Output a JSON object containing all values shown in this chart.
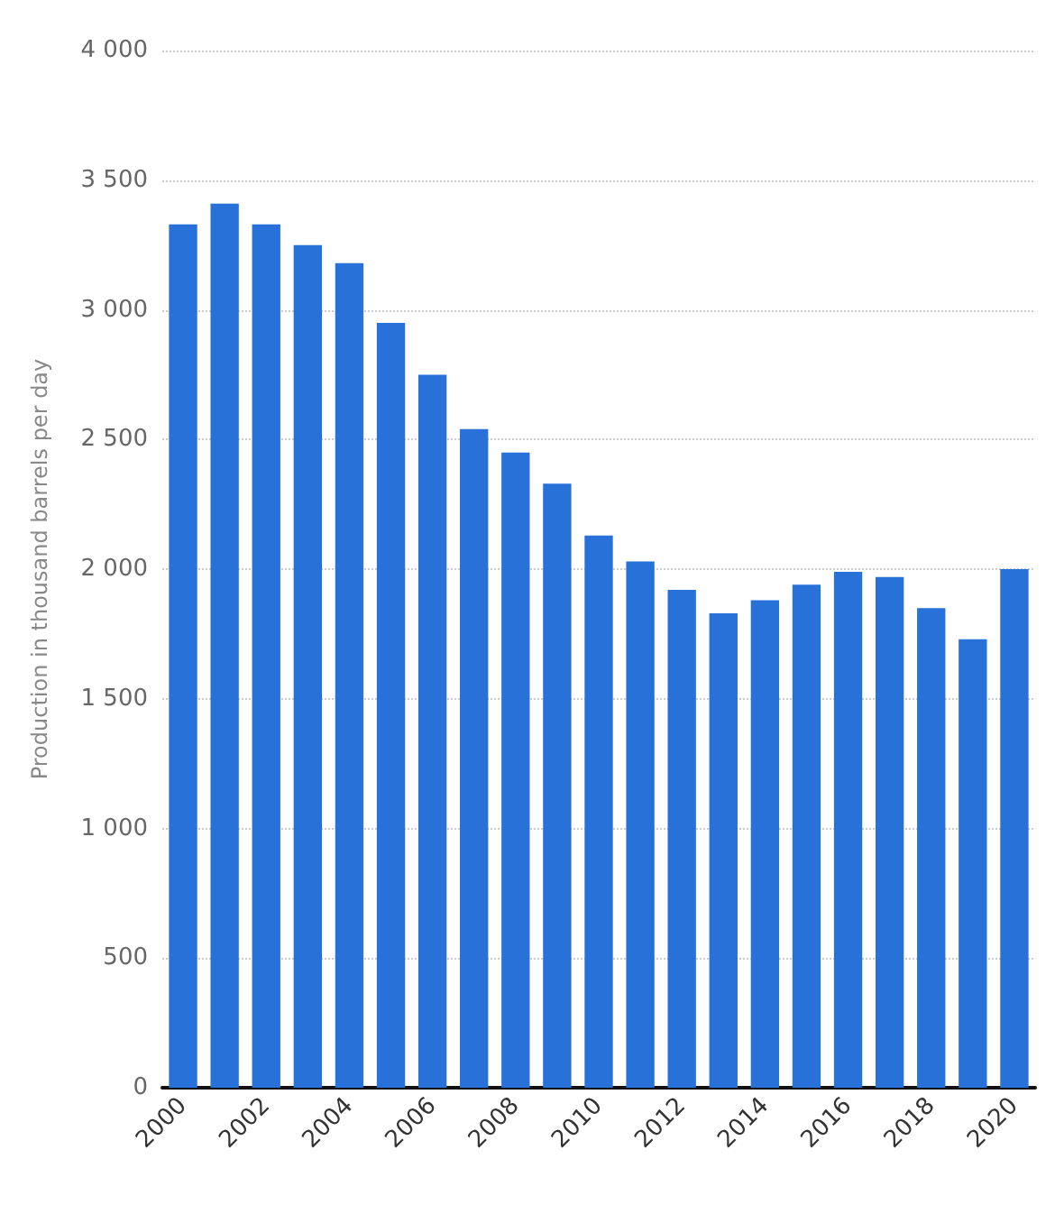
{
  "chart_data": {
    "type": "bar",
    "ylabel": "Production in thousand barrels per day",
    "categories": [
      "2000",
      null,
      "2002",
      null,
      "2004",
      null,
      "2006",
      null,
      "2008",
      null,
      "2010",
      null,
      "2012",
      null,
      "2014",
      null,
      "2016",
      null,
      "2018",
      null,
      "2020"
    ],
    "values": [
      3330,
      3410,
      3330,
      3250,
      3180,
      2950,
      2750,
      2540,
      2450,
      2330,
      2130,
      2030,
      1920,
      1830,
      1880,
      1940,
      1990,
      1970,
      1850,
      1730,
      2000
    ],
    "color": "#2771d9",
    "ylim": [
      0,
      4000
    ],
    "yticks": [
      {
        "value": 0,
        "label": "0"
      },
      {
        "value": 500,
        "label": "500"
      },
      {
        "value": 1000,
        "label": "1 000"
      },
      {
        "value": 1500,
        "label": "1 500"
      },
      {
        "value": 2000,
        "label": "2 000"
      },
      {
        "value": 2500,
        "label": "2 500"
      },
      {
        "value": 3000,
        "label": "3 000"
      },
      {
        "value": 3500,
        "label": "3 500"
      },
      {
        "value": 4000,
        "label": "4 000"
      }
    ],
    "grid": "y"
  }
}
